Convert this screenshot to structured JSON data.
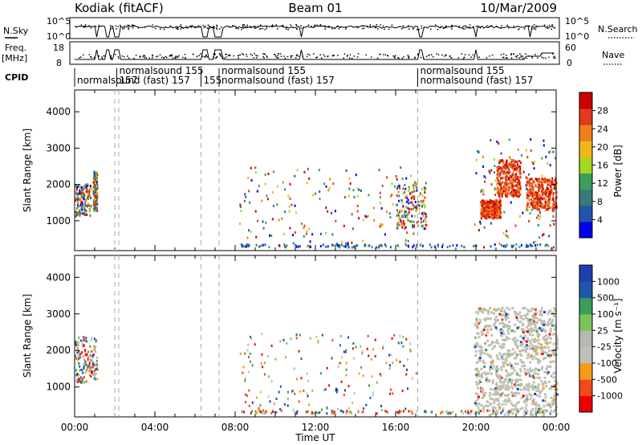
{
  "header": {
    "station": "Kodiak (fitACF)",
    "beam": "Beam 01",
    "date": "10/Mar/2009"
  },
  "summary_panels": {
    "nsky_label": "N.Sky",
    "nsearch_label": "N.Search",
    "freq_label_1": "Freq.",
    "freq_label_2": "[MHz]",
    "nave_label": "Nave",
    "cpid_label": "CPID",
    "nsky_ticks": [
      "10^5",
      "10^0"
    ],
    "nsearch_ticks": [
      "10^5",
      "10^0"
    ],
    "freq_ticks": [
      "18",
      "8"
    ],
    "nave_ticks": [
      "60",
      "0"
    ]
  },
  "cpid_segments": [
    {
      "start_h": 0.0,
      "end_h": 2.1,
      "label": "normalsound (fast)  157",
      "row": 1
    },
    {
      "start_h": 2.1,
      "end_h": 6.3,
      "label": "normalsound  155",
      "row": 0
    },
    {
      "start_h": 2.1,
      "end_h": 6.3,
      "label": "157",
      "row": 1
    },
    {
      "start_h": 6.3,
      "end_h": 7.2,
      "label": "155",
      "row": 1
    },
    {
      "start_h": 7.2,
      "end_h": 17.1,
      "label": "normalsound  155",
      "row": 0
    },
    {
      "start_h": 7.2,
      "end_h": 17.1,
      "label": "normalsound (fast)  157",
      "row": 1
    },
    {
      "start_h": 17.1,
      "end_h": 24.0,
      "label": "normalsound  155",
      "row": 0
    },
    {
      "start_h": 17.1,
      "end_h": 24.0,
      "label": "normalsound (fast)  157",
      "row": 1
    }
  ],
  "colors": {
    "power_scale": [
      "#0000ee",
      "#2255aa",
      "#3a7a7a",
      "#3b9e5b",
      "#a6d61e",
      "#f2b61a",
      "#f07f1a",
      "#e03a1a",
      "#cc0000"
    ],
    "velocity_scale": [
      "#ee0000",
      "#f04a1a",
      "#f59a1a",
      "#c0c0b8",
      "#b8b8b0",
      "#7ac45a",
      "#3a9e5a",
      "#2255aa",
      "#1f3fb0"
    ],
    "ground_scatter": "#bfbfb5"
  },
  "chart_data": [
    {
      "type": "heatmap",
      "panel": "power",
      "title": "Beam 01",
      "xlabel": "Time UT",
      "ylabel": "Slant Range [km]",
      "xlim_hours": [
        0,
        24
      ],
      "ylim_km": [
        180,
        4600
      ],
      "x_ticks": [
        "00:00",
        "04:00",
        "08:00",
        "12:00",
        "16:00",
        "20:00",
        "00:00"
      ],
      "y_ticks": [
        "1000",
        "2000",
        "3000",
        "4000"
      ],
      "colorbar_label": "Power [dB]",
      "colorbar_ticks": [
        "4",
        "8",
        "12",
        "16",
        "20",
        "24",
        "28"
      ],
      "regions": [
        {
          "t0": 0.0,
          "t1": 0.8,
          "r0": 1150,
          "r1": 2050,
          "level": "mixed"
        },
        {
          "t0": 0.9,
          "t1": 1.1,
          "r0": 1300,
          "r1": 2400,
          "level": "mixed"
        },
        {
          "t0": 8.2,
          "t1": 17.0,
          "r0": 300,
          "r1": 2500,
          "level": "sparse"
        },
        {
          "t0": 16.0,
          "t1": 17.5,
          "r0": 800,
          "r1": 2100,
          "level": "medium"
        },
        {
          "t0": 19.9,
          "t1": 24.0,
          "r0": 250,
          "r1": 3300,
          "level": "mixed"
        },
        {
          "t0": 20.2,
          "t1": 21.2,
          "r0": 1100,
          "r1": 1600,
          "level": "high"
        },
        {
          "t0": 21.0,
          "t1": 22.2,
          "r0": 1700,
          "r1": 2700,
          "level": "high"
        },
        {
          "t0": 22.5,
          "t1": 24.0,
          "r0": 1300,
          "r1": 2200,
          "level": "high"
        }
      ]
    },
    {
      "type": "heatmap",
      "panel": "velocity",
      "xlabel": "Time UT",
      "ylabel": "Slant Range [km]",
      "xlim_hours": [
        0,
        24
      ],
      "ylim_km": [
        180,
        4600
      ],
      "x_ticks": [
        "00:00",
        "04:00",
        "08:00",
        "12:00",
        "16:00",
        "20:00",
        "00:00"
      ],
      "y_ticks": [
        "1000",
        "2000",
        "3000",
        "4000"
      ],
      "colorbar_label": "Velocity  [m s⁻¹]",
      "colorbar_ticks": [
        "1000",
        "500",
        "100",
        "25",
        "-25",
        "-100",
        "-500",
        "-1000"
      ],
      "regions": [
        {
          "t0": 0.0,
          "t1": 1.1,
          "r0": 1150,
          "r1": 2400,
          "level": "mixed"
        },
        {
          "t0": 8.2,
          "t1": 17.0,
          "r0": 300,
          "r1": 2500,
          "level": "sparse"
        },
        {
          "t0": 19.9,
          "t1": 24.0,
          "r0": 250,
          "r1": 3200,
          "level": "ground"
        }
      ]
    }
  ]
}
